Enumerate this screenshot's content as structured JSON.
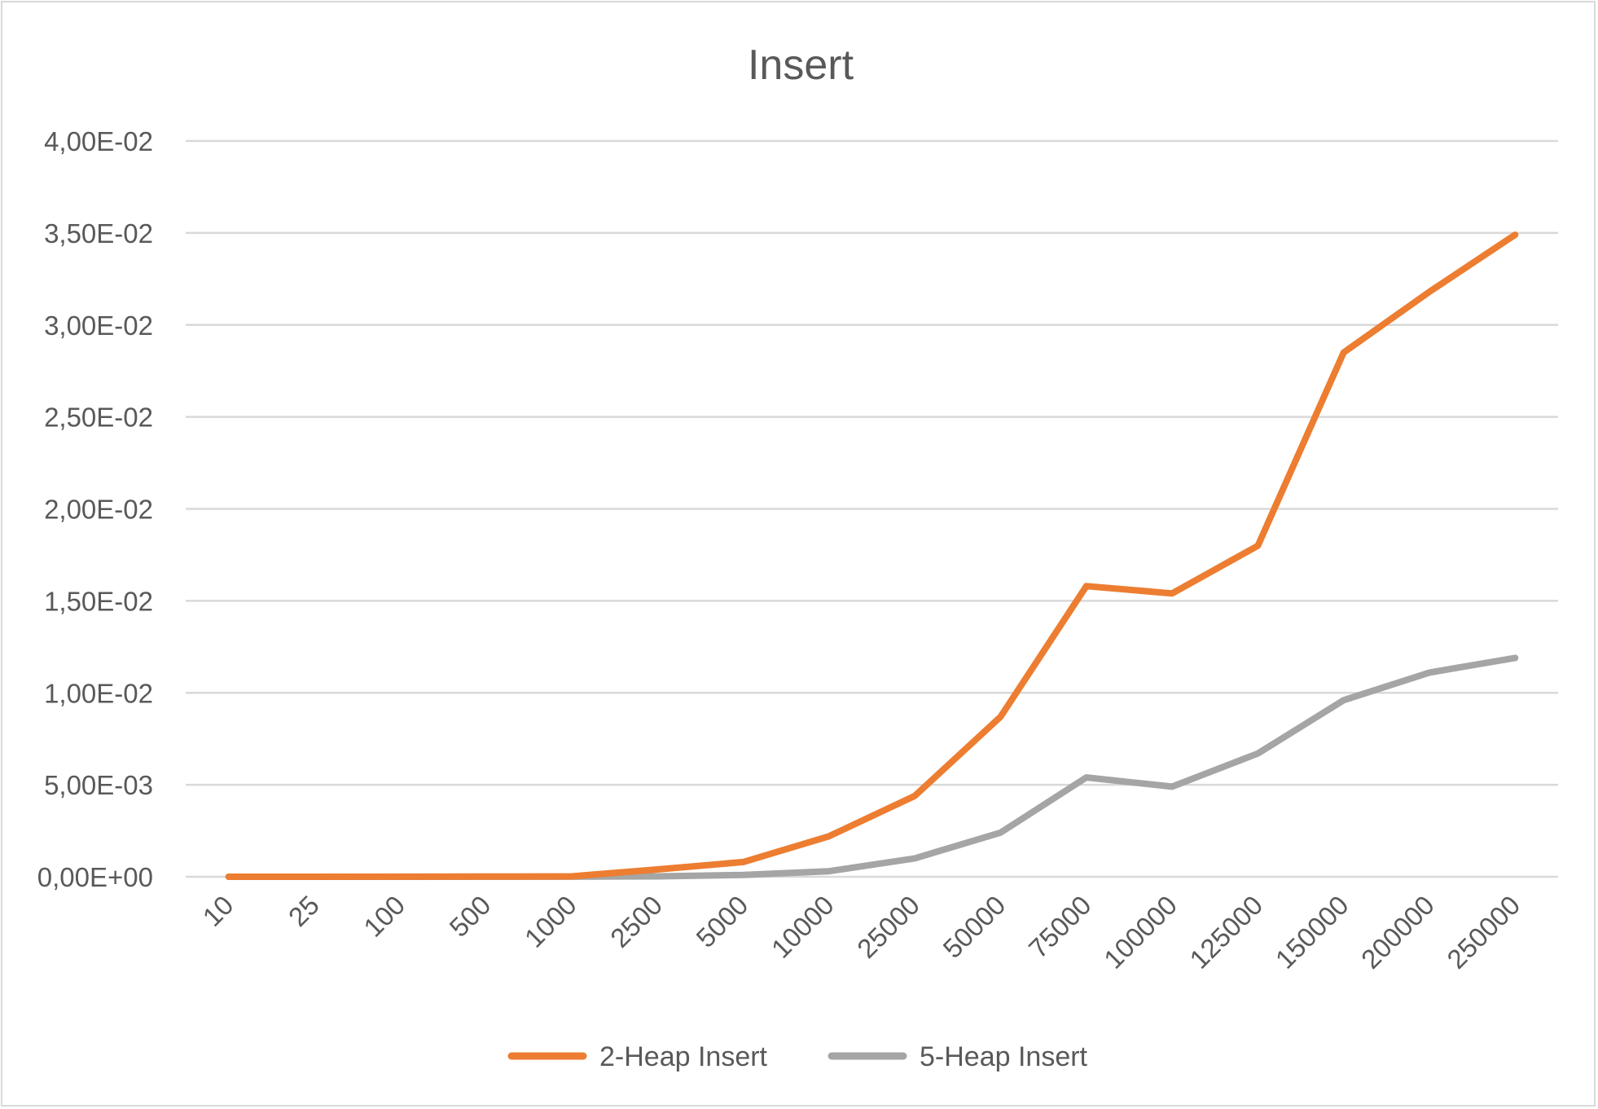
{
  "chart_data": {
    "type": "line",
    "title": "Insert",
    "xlabel": "",
    "ylabel": "",
    "categories": [
      "10",
      "25",
      "100",
      "500",
      "1000",
      "2500",
      "5000",
      "10000",
      "25000",
      "50000",
      "75000",
      "100000",
      "125000",
      "150000",
      "200000",
      "250000"
    ],
    "y_tick_labels": [
      "0,00E+00",
      "5,00E-03",
      "1,00E-02",
      "1,50E-02",
      "2,00E-02",
      "2,50E-02",
      "3,00E-02",
      "3,50E-02",
      "4,00E-02"
    ],
    "ylim": [
      0,
      0.04
    ],
    "y_tick_step": 0.005,
    "grid": true,
    "legend_position": "bottom",
    "series": [
      {
        "name": "2-Heap Insert",
        "color": "#ed7d31",
        "values": [
          5e-07,
          1e-06,
          4e-06,
          1e-05,
          2e-05,
          0.0004,
          0.0008,
          0.0022,
          0.0044,
          0.0087,
          0.0158,
          0.0154,
          0.018,
          0.0285,
          0.0318,
          0.0349
        ]
      },
      {
        "name": "5-Heap Insert",
        "color": "#a5a5a5",
        "values": [
          2e-07,
          5e-07,
          1e-06,
          3e-06,
          5e-06,
          2e-05,
          0.0001,
          0.0003,
          0.001,
          0.0024,
          0.0054,
          0.0049,
          0.0067,
          0.0096,
          0.0111,
          0.0119
        ]
      }
    ]
  }
}
